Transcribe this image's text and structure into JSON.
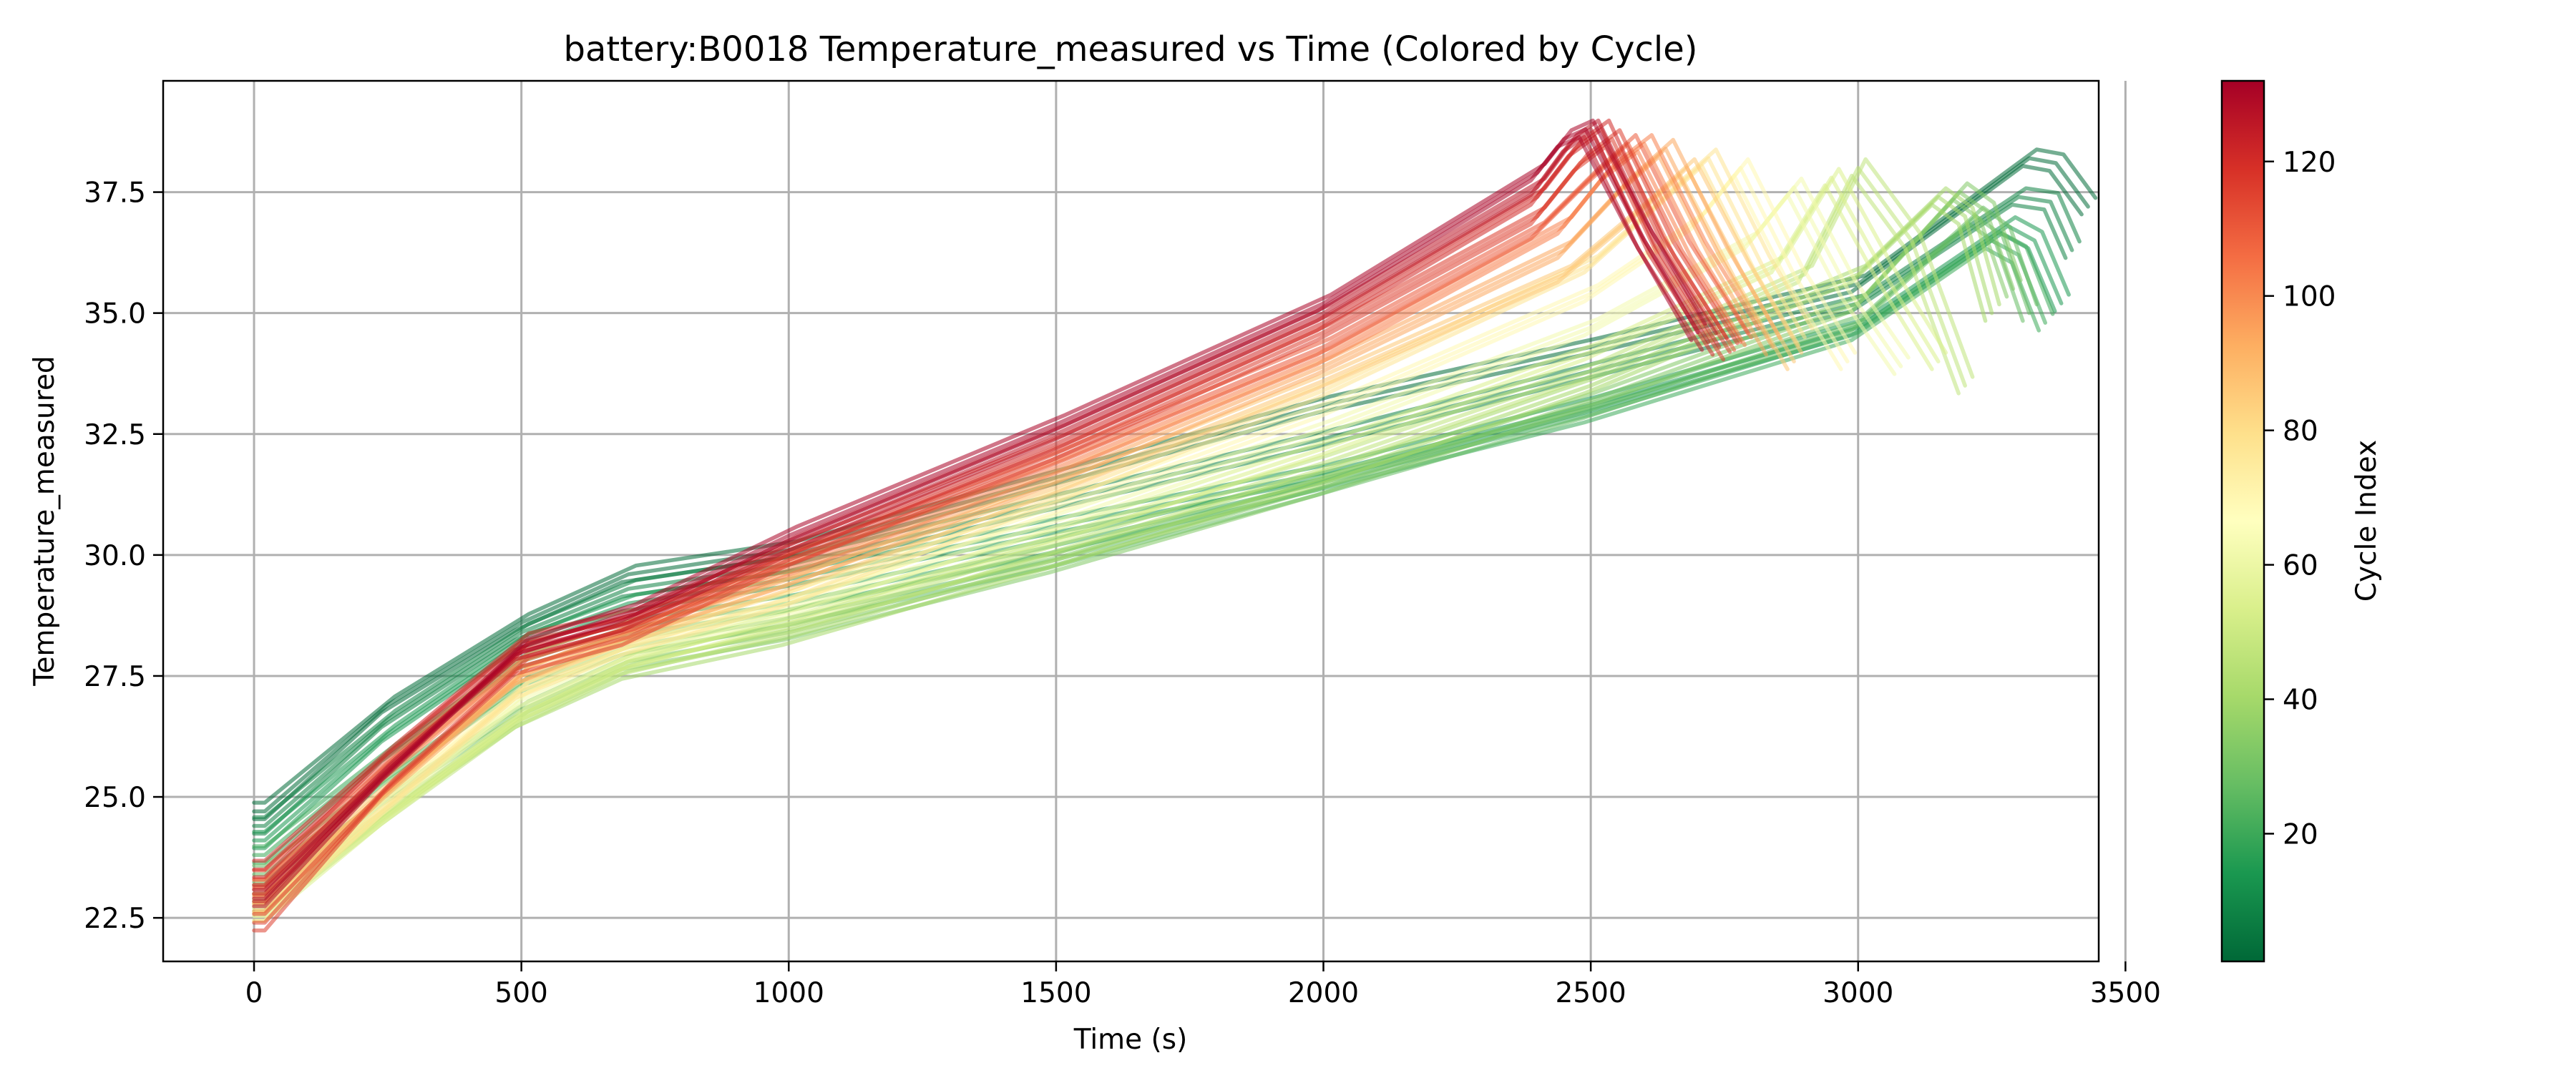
{
  "chart_data": {
    "type": "line",
    "title": "battery:B0018 Temperature_measured vs Time (Colored by Cycle)",
    "xlabel": "Time (s)",
    "ylabel": "Temperature_measured",
    "xlim": [
      -170,
      3450
    ],
    "ylim": [
      21.6,
      39.8
    ],
    "xticks": [
      0,
      500,
      1000,
      1500,
      2000,
      2500,
      3000,
      3500
    ],
    "yticks": [
      22.5,
      25.0,
      27.5,
      30.0,
      32.5,
      35.0,
      37.5
    ],
    "grid": true,
    "line_alpha": 0.55,
    "colormap": "RdYlGn_r",
    "colormap_stops": [
      "#006837",
      "#1a9850",
      "#66bd63",
      "#a6d96a",
      "#d9ef8b",
      "#ffffbf",
      "#fee08b",
      "#fdae61",
      "#f46d43",
      "#d73027",
      "#a50026"
    ],
    "colorbar": {
      "label": "Cycle Index",
      "range": [
        1,
        132
      ],
      "ticks": [
        20,
        40,
        60,
        80,
        100,
        120
      ]
    },
    "series": [
      {
        "cycle": 2,
        "x": [
          0,
          20,
          250,
          500,
          700,
          1000,
          1500,
          2000,
          2500,
          3000,
          3320,
          3370,
          3430
        ],
        "y": [
          24.7,
          24.7,
          26.9,
          28.6,
          29.6,
          30.1,
          31.6,
          33.1,
          34.3,
          35.6,
          38.2,
          38.1,
          37.2
        ]
      },
      {
        "cycle": 8,
        "x": [
          0,
          20,
          250,
          500,
          700,
          1000,
          1500,
          2000,
          2500,
          3000,
          3300,
          3360,
          3400
        ],
        "y": [
          24.4,
          24.4,
          26.6,
          28.4,
          29.3,
          29.8,
          31.1,
          32.4,
          33.8,
          35.2,
          37.4,
          37.3,
          36.3
        ]
      },
      {
        "cycle": 14,
        "x": [
          0,
          20,
          250,
          500,
          700,
          1000,
          1500,
          2000,
          2500,
          3000,
          3280,
          3330,
          3380
        ],
        "y": [
          24.1,
          24.1,
          26.3,
          28.2,
          29.0,
          29.5,
          30.6,
          31.7,
          33.1,
          34.7,
          36.8,
          36.5,
          35.2
        ]
      },
      {
        "cycle": 20,
        "x": [
          0,
          20,
          250,
          500,
          700,
          1000,
          1500,
          2000,
          2500,
          3000,
          3250,
          3300,
          3350
        ],
        "y": [
          23.8,
          23.8,
          25.9,
          27.8,
          28.5,
          29.0,
          30.2,
          31.5,
          32.9,
          34.6,
          36.5,
          36.2,
          34.8
        ]
      },
      {
        "cycle": 27,
        "x": [
          0,
          20,
          250,
          500,
          700,
          1000,
          1500,
          2000,
          2500,
          3000,
          3220,
          3270,
          3320
        ],
        "y": [
          23.4,
          23.4,
          25.4,
          27.3,
          28.1,
          28.7,
          29.9,
          31.4,
          33.0,
          34.8,
          37.0,
          36.6,
          35.0
        ]
      },
      {
        "cycle": 33,
        "x": [
          0,
          20,
          250,
          500,
          700,
          1000,
          1500,
          2000,
          2500,
          3000,
          3190,
          3240,
          3290
        ],
        "y": [
          23.0,
          23.0,
          25.0,
          26.8,
          27.8,
          28.4,
          29.8,
          31.4,
          33.2,
          35.2,
          37.5,
          37.1,
          35.5
        ]
      },
      {
        "cycle": 40,
        "x": [
          0,
          20,
          250,
          500,
          700,
          1000,
          1500,
          2000,
          2500,
          3000,
          3150,
          3200,
          3250
        ],
        "y": [
          22.8,
          22.8,
          24.7,
          26.6,
          27.6,
          28.3,
          29.9,
          31.6,
          33.5,
          35.8,
          37.4,
          37.0,
          35.0
        ]
      },
      {
        "cycle": 47,
        "x": [
          0,
          20,
          250,
          500,
          700,
          1000,
          1500,
          2000,
          2500,
          2900,
          3000,
          3100,
          3200
        ],
        "y": [
          22.7,
          22.7,
          24.6,
          26.6,
          27.7,
          28.5,
          30.2,
          31.9,
          33.8,
          35.8,
          38.0,
          36.5,
          33.5
        ]
      },
      {
        "cycle": 54,
        "x": [
          0,
          20,
          250,
          500,
          700,
          1000,
          1500,
          2000,
          2500,
          2850,
          2950,
          3050,
          3150
        ],
        "y": [
          22.6,
          22.6,
          24.6,
          26.7,
          27.8,
          28.7,
          30.4,
          32.2,
          34.2,
          36.0,
          37.8,
          35.8,
          34.0
        ]
      },
      {
        "cycle": 62,
        "x": [
          0,
          20,
          250,
          500,
          700,
          1000,
          1500,
          2000,
          2500,
          2800,
          2880,
          2980,
          3080
        ],
        "y": [
          22.7,
          22.7,
          24.8,
          27.0,
          28.0,
          28.9,
          30.7,
          32.6,
          34.7,
          36.5,
          37.6,
          35.5,
          33.9
        ]
      },
      {
        "cycle": 70,
        "x": [
          0,
          20,
          250,
          500,
          700,
          1000,
          1500,
          2000,
          2500,
          2700,
          2780,
          2880,
          2980
        ],
        "y": [
          22.9,
          22.9,
          25.0,
          27.2,
          28.2,
          29.1,
          31.0,
          33.0,
          35.4,
          36.9,
          38.0,
          35.8,
          34.0
        ]
      },
      {
        "cycle": 78,
        "x": [
          0,
          20,
          250,
          500,
          700,
          1000,
          1500,
          2000,
          2500,
          2640,
          2720,
          2820,
          2900
        ],
        "y": [
          22.6,
          22.6,
          24.8,
          27.2,
          28.1,
          29.1,
          31.2,
          33.4,
          36.0,
          37.4,
          38.2,
          36.0,
          34.5
        ]
      },
      {
        "cycle": 86,
        "x": [
          0,
          20,
          250,
          500,
          700,
          1000,
          1500,
          2000,
          2450,
          2600,
          2680,
          2780,
          2880
        ],
        "y": [
          23.0,
          23.0,
          25.2,
          27.5,
          28.3,
          29.4,
          31.4,
          33.6,
          35.8,
          37.2,
          38.0,
          35.9,
          34.0
        ]
      },
      {
        "cycle": 94,
        "x": [
          0,
          20,
          250,
          500,
          700,
          1000,
          1500,
          2000,
          2450,
          2560,
          2640,
          2740,
          2840
        ],
        "y": [
          22.8,
          22.8,
          25.1,
          27.5,
          28.4,
          29.5,
          31.6,
          33.9,
          36.3,
          37.6,
          38.4,
          36.2,
          34.3
        ]
      },
      {
        "cycle": 102,
        "x": [
          0,
          20,
          250,
          500,
          700,
          1000,
          1500,
          2000,
          2450,
          2530,
          2600,
          2700,
          2800
        ],
        "y": [
          23.1,
          23.1,
          25.5,
          27.8,
          28.5,
          29.7,
          31.8,
          34.1,
          36.8,
          37.9,
          38.5,
          36.3,
          34.5
        ]
      },
      {
        "cycle": 110,
        "x": [
          0,
          20,
          250,
          500,
          700,
          1000,
          1500,
          2000,
          2400,
          2500,
          2570,
          2670,
          2780
        ],
        "y": [
          23.3,
          23.3,
          25.7,
          28.0,
          28.6,
          29.9,
          32.0,
          34.3,
          36.7,
          37.8,
          38.5,
          36.3,
          34.4
        ]
      },
      {
        "cycle": 116,
        "x": [
          0,
          20,
          250,
          500,
          700,
          1000,
          1500,
          2000,
          2400,
          2480,
          2540,
          2640,
          2760
        ],
        "y": [
          22.4,
          22.4,
          25.2,
          27.7,
          28.3,
          29.9,
          32.1,
          34.6,
          37.0,
          38.1,
          38.6,
          36.3,
          34.2
        ]
      },
      {
        "cycle": 121,
        "x": [
          0,
          20,
          250,
          500,
          700,
          1000,
          1500,
          2000,
          2400,
          2470,
          2520,
          2620,
          2740
        ],
        "y": [
          23.5,
          23.5,
          25.9,
          28.2,
          28.7,
          30.1,
          32.3,
          34.8,
          37.4,
          38.4,
          38.8,
          36.4,
          34.3
        ]
      },
      {
        "cycle": 126,
        "x": [
          0,
          20,
          250,
          500,
          700,
          1000,
          1500,
          2000,
          2400,
          2460,
          2500,
          2600,
          2720
        ],
        "y": [
          23.0,
          23.0,
          25.6,
          28.0,
          28.6,
          30.2,
          32.5,
          35.0,
          37.6,
          38.5,
          38.8,
          36.5,
          34.4
        ]
      },
      {
        "cycle": 131,
        "x": [
          0,
          20,
          250,
          500,
          700,
          1000,
          1500,
          2000,
          2400,
          2450,
          2490,
          2590,
          2700
        ],
        "y": [
          22.9,
          22.9,
          25.5,
          28.1,
          28.8,
          30.4,
          32.7,
          35.2,
          37.9,
          38.6,
          38.8,
          36.7,
          34.6
        ]
      }
    ]
  }
}
